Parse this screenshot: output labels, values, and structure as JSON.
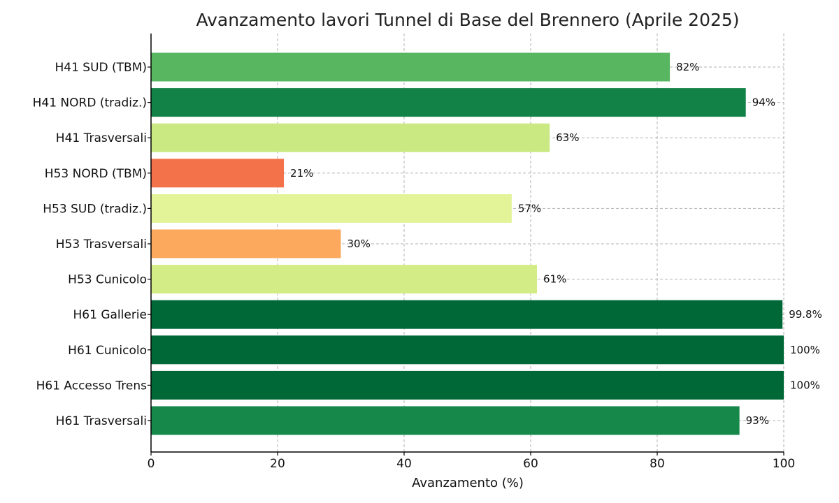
{
  "chart_data": {
    "type": "bar",
    "orientation": "horizontal",
    "title": "Avanzamento lavori Tunnel di Base del Brennero (Aprile 2025)",
    "xlabel": "Avanzamento (%)",
    "ylabel": "",
    "xlim": [
      0,
      100
    ],
    "xticks": [
      0,
      20,
      40,
      60,
      80,
      100
    ],
    "grid": true,
    "categories": [
      "H41 SUD (TBM)",
      "H41 NORD (tradiz.)",
      "H41 Trasversali",
      "H53 NORD (TBM)",
      "H53 SUD (tradiz.)",
      "H53 Trasversali",
      "H53 Cunicolo",
      "H61 Gallerie",
      "H61 Cunicolo",
      "H61 Accesso Trens",
      "H61 Trasversali"
    ],
    "values": [
      82,
      94,
      63,
      21,
      57,
      30,
      61,
      99.8,
      100,
      100,
      93
    ],
    "value_labels": [
      "82%",
      "94%",
      "63%",
      "21%",
      "57%",
      "30%",
      "61%",
      "99.8%",
      "100%",
      "100%",
      "93%"
    ],
    "colors": [
      "#57b65f",
      "#128246",
      "#cbe982",
      "#f4724a",
      "#e2f398",
      "#fca95e",
      "#d4ec86",
      "#006837",
      "#006837",
      "#006837",
      "#16894a"
    ]
  }
}
